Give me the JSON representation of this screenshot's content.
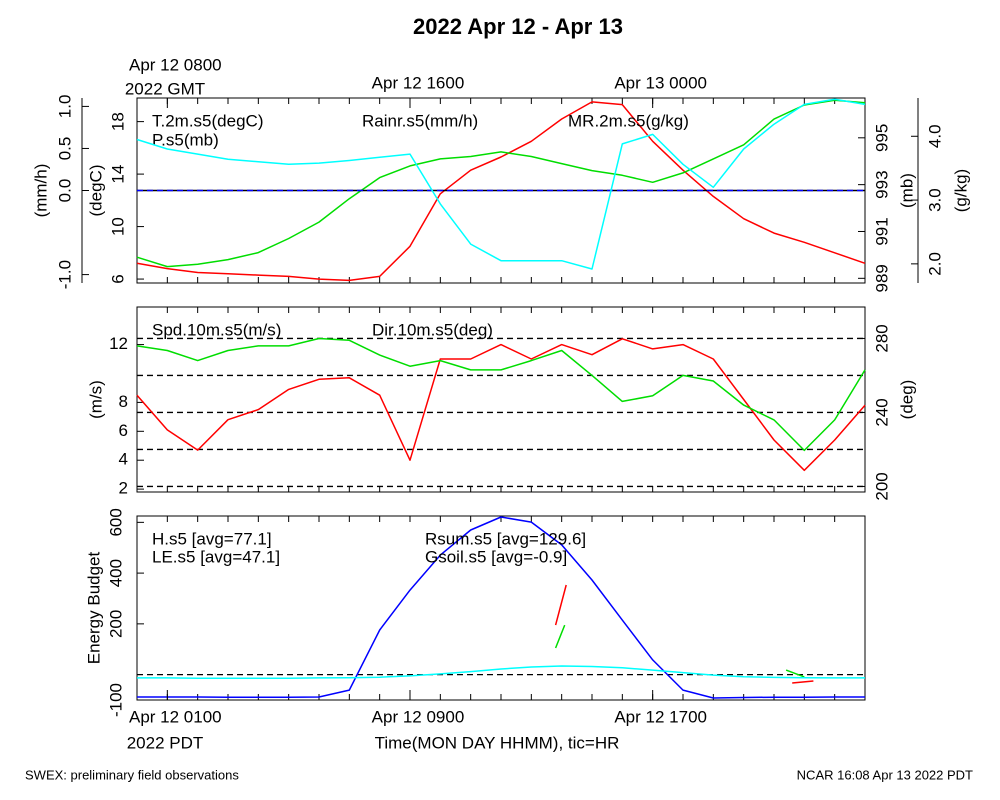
{
  "title": "2022 Apr 12 - Apr 13",
  "footer_left": "SWEX: preliminary field observations",
  "footer_right": "NCAR 16:08 Apr 13 2022 PDT",
  "time_axis": {
    "xlim": [
      0,
      24
    ],
    "ticks": [
      0,
      1,
      2,
      3,
      4,
      5,
      6,
      7,
      8,
      9,
      10,
      11,
      12,
      13,
      14,
      15,
      16,
      17,
      18,
      19,
      20,
      21,
      22,
      23,
      24
    ],
    "bottom_labels": [
      {
        "value": 1,
        "label": "Apr 12 0100"
      },
      {
        "value": 9,
        "label": "Apr 12 0900"
      },
      {
        "value": 17,
        "label": "Apr 12 1700"
      }
    ],
    "bottom_sublabel": "2022 PDT",
    "top_labels": [
      {
        "value": 1,
        "label": "Apr 12 0800"
      },
      {
        "value": 9,
        "label": "Apr 12 1600"
      },
      {
        "value": 17,
        "label": "Apr 13 0000"
      }
    ],
    "top_sublabel": "2022 GMT",
    "xlabel": "Time(MON DAY HHMM), tic=HR"
  },
  "chart_data": [
    {
      "type": "line",
      "x": [
        0,
        1,
        2,
        3,
        4,
        5,
        6,
        7,
        8,
        9,
        10,
        11,
        12,
        13,
        14,
        15,
        16,
        17,
        18,
        19,
        20,
        21,
        22,
        23,
        24
      ],
      "axes": [
        {
          "label": "(mm/h)",
          "side": "left",
          "ylim": [
            -1.1,
            1.1
          ],
          "yticks": [
            {
              "value": -1,
              "label": "-1.0"
            },
            {
              "value": 0,
              "label": "0.0"
            },
            0.5,
            {
              "value": 1,
              "label": "1.0"
            }
          ]
        },
        {
          "label": "(degC)",
          "side": "left",
          "ylim": [
            5.7,
            19.8
          ],
          "yticks": [
            6,
            10,
            14,
            18
          ]
        },
        {
          "label": "(mb)",
          "side": "right",
          "ylim": [
            988.8,
            996.7
          ],
          "yticks": [
            989,
            991,
            993,
            995
          ]
        },
        {
          "label": "(g/kg)",
          "side": "right",
          "ylim": [
            1.7,
            4.6
          ],
          "yticks": [
            {
              "value": 2,
              "label": "2.0"
            },
            {
              "value": 3,
              "label": "3.0"
            },
            {
              "value": 4,
              "label": "4.0"
            }
          ]
        }
      ],
      "series": [
        {
          "name": "T.2m.s5(degC)",
          "color": "#ff0000",
          "axis": 1,
          "values": [
            7.2,
            6.8,
            6.5,
            6.4,
            6.3,
            6.2,
            6.0,
            5.9,
            6.2,
            8.5,
            12.5,
            14.3,
            15.3,
            16.5,
            18.2,
            19.5,
            19.3,
            16.5,
            14.3,
            12.3,
            10.6,
            9.5,
            8.8,
            8.0,
            7.2
          ]
        },
        {
          "name": "P.s5(mb)",
          "color": "#00dd00",
          "axis": 2,
          "values": [
            989.9,
            989.5,
            989.6,
            989.8,
            990.1,
            990.7,
            991.4,
            992.4,
            993.3,
            993.8,
            994.1,
            994.2,
            994.4,
            994.2,
            993.9,
            993.6,
            993.4,
            993.1,
            993.5,
            994.1,
            994.7,
            995.8,
            996.4,
            996.6,
            996.5
          ]
        },
        {
          "name": "Rainr.s5(mm/h)",
          "color": "#0000ff",
          "axis": 0,
          "values": [
            0,
            0,
            0,
            0,
            0,
            0,
            0,
            0,
            0,
            0,
            0,
            0,
            0,
            0,
            0,
            0,
            0,
            0,
            0,
            0,
            0,
            0,
            0,
            0,
            0
          ]
        },
        {
          "name": "MR.2m.s5(g/kg)",
          "color": "#00ffff",
          "axis": 3,
          "values": [
            3.95,
            3.8,
            3.72,
            3.64,
            3.6,
            3.56,
            3.58,
            3.62,
            3.67,
            3.72,
            2.94,
            2.31,
            2.05,
            2.05,
            2.05,
            1.92,
            3.88,
            4.03,
            3.56,
            3.2,
            3.8,
            4.19,
            4.5,
            4.58,
            4.5
          ]
        }
      ]
    },
    {
      "type": "line",
      "x": [
        0,
        1,
        2,
        3,
        4,
        5,
        6,
        7,
        8,
        9,
        10,
        11,
        12,
        13,
        14,
        15,
        16,
        17,
        18,
        19,
        20,
        21,
        22,
        23,
        24
      ],
      "axes": [
        {
          "label": "(m/s)",
          "side": "left",
          "ylim": [
            1.8,
            14.6
          ],
          "yticks": [
            2,
            4,
            6,
            8,
            12
          ]
        },
        {
          "label": "(deg)",
          "side": "right",
          "ylim": [
            197,
            297
          ],
          "yticks": [
            200,
            240,
            280
          ],
          "grid": [
            200,
            220,
            240,
            260,
            280
          ]
        }
      ],
      "series": [
        {
          "name": "Spd.10m.s5(m/s)",
          "color": "#ff0000",
          "axis": 0,
          "values": [
            8.5,
            6.1,
            4.7,
            6.8,
            7.5,
            8.9,
            9.6,
            9.7,
            8.5,
            4.0,
            11.0,
            11.0,
            12.0,
            11.0,
            12.0,
            11.3,
            12.4,
            11.7,
            12.0,
            11.0,
            8.2,
            5.4,
            3.3,
            5.4,
            7.8
          ]
        },
        {
          "name": "Dir.10m.s5(deg)",
          "color": "#00dd00",
          "axis": 1,
          "values": [
            276,
            273.5,
            268,
            273.5,
            276,
            276,
            280,
            279,
            271,
            265,
            268,
            263,
            263,
            268,
            273.5,
            260,
            246,
            249,
            260,
            257,
            244,
            236,
            219.5,
            236,
            263
          ]
        }
      ]
    },
    {
      "type": "line",
      "x": [
        0,
        1,
        2,
        3,
        4,
        5,
        6,
        7,
        8,
        9,
        10,
        11,
        12,
        13,
        14,
        15,
        16,
        17,
        18,
        19,
        20,
        21,
        22,
        23,
        24
      ],
      "axes": [
        {
          "label": "Energy Budget",
          "side": "left",
          "ylim": [
            -100,
            625
          ],
          "yticks": [
            -100,
            200,
            400,
            600
          ],
          "grid": [
            0
          ]
        }
      ],
      "series": [
        {
          "name": "H.s5 [avg=77.1]",
          "color": "#ff0000",
          "axis": 0,
          "x": [
            13.8,
            14.15,
            18,
            21.6,
            22.3
          ],
          "values": [
            195,
            353,
            null,
            -33,
            -25
          ]
        },
        {
          "name": "LE.s5 [avg=47.1]",
          "color": "#00dd00",
          "axis": 0,
          "x": [
            13.8,
            14.1,
            18,
            21.4,
            22.0
          ],
          "values": [
            105,
            195,
            null,
            18,
            -9
          ]
        },
        {
          "name": "Rsum.s5 [avg=129.6]",
          "color": "#0000ff",
          "axis": 0,
          "values": [
            -88,
            -88,
            -88,
            -89,
            -89,
            -89,
            -88,
            -61,
            176,
            333,
            471,
            570,
            621,
            601,
            511,
            373,
            215,
            58,
            -61,
            -92,
            -90,
            -89,
            -89,
            -88,
            -88
          ]
        },
        {
          "name": "Gsoil.s5 [avg=-0.9]",
          "color": "#00ffff",
          "axis": 0,
          "values": [
            -13,
            -13,
            -14,
            -14,
            -14,
            -14,
            -13,
            -12,
            -10,
            -5,
            3,
            12,
            22,
            30,
            34,
            32,
            27,
            18,
            8,
            -2,
            -8,
            -11,
            -12,
            -13,
            -13
          ]
        }
      ]
    }
  ]
}
